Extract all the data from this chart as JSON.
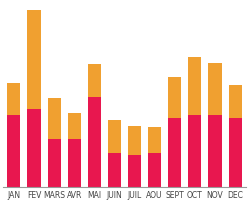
{
  "categories": [
    "JAN",
    "FEV",
    "MARS",
    "AVR",
    "MAI",
    "JUIN",
    "JUIL",
    "AOU",
    "SEPT",
    "OCT",
    "NOV",
    "DEC"
  ],
  "pink_values": [
    62,
    68,
    42,
    42,
    78,
    30,
    28,
    30,
    60,
    62,
    62,
    60
  ],
  "orange_values": [
    28,
    85,
    35,
    22,
    28,
    28,
    25,
    22,
    35,
    50,
    45,
    28
  ],
  "pink_color": "#E8174F",
  "orange_color": "#F0A030",
  "bg_color": "#FFFFFF",
  "tick_fontsize": 5.5,
  "ylim": [
    0,
    160
  ]
}
